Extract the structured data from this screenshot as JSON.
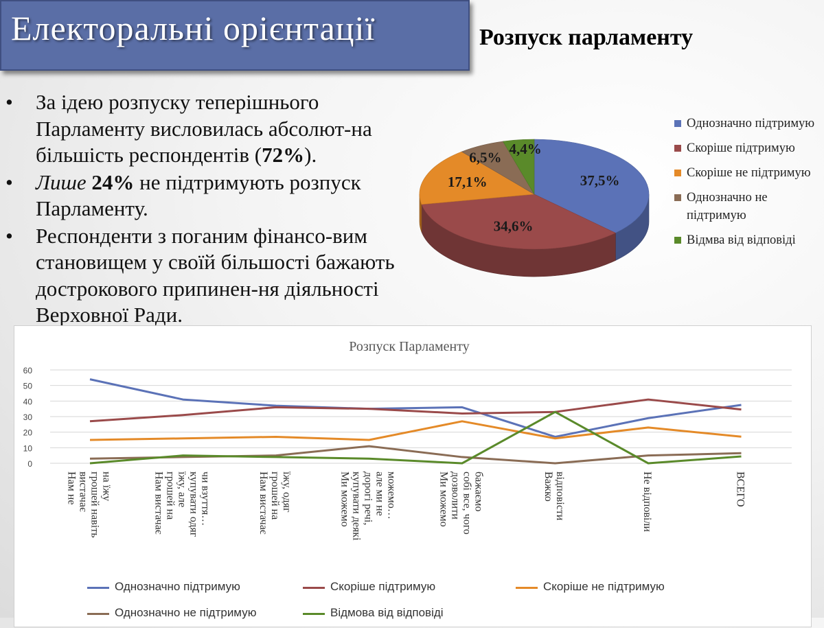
{
  "header": {
    "title": "Електоральні орієнтації",
    "subtitle": "Розпуск парламенту"
  },
  "bullets": [
    {
      "dot": "•",
      "parts": [
        {
          "t": "За ідею розпуску теперішнього Парламенту висловилась абсолют-на більшість респондентів ("
        },
        {
          "t": "72%",
          "b": true
        },
        {
          "t": ")."
        }
      ]
    },
    {
      "dot": "•",
      "parts": [
        {
          "t": "Лише ",
          "i": true
        },
        {
          "t": "24%",
          "b": true
        },
        {
          "t": " не підтримують розпуск Парламенту."
        }
      ]
    },
    {
      "dot": "•",
      "parts": [
        {
          "t": "Респонденти з поганим фінансо-вим становищем у своїй більшості бажають дострокового припинен-ня діяльності Верховної Ради."
        }
      ]
    }
  ],
  "colors": {
    "blue": "#5b72b7",
    "red": "#9a4a4a",
    "orange": "#e48a28",
    "brown": "#8a6c55",
    "green": "#5a8a2a"
  },
  "chart_data": [
    {
      "type": "pie",
      "title": "",
      "labels": [
        "Однозначно підтримую",
        "Скоріше підтримую",
        "Скоріше не підтримую",
        "Однозначно не підтримую",
        "Відмва від відповіді"
      ],
      "values": [
        37.5,
        34.6,
        17.1,
        6.5,
        4.4
      ],
      "value_labels": [
        "37,5%",
        "34,6%",
        "17,1%",
        "6,5%",
        "4,4%"
      ],
      "legend_position": "right",
      "style": "3d"
    },
    {
      "type": "line",
      "title": "Розпуск Парламенту",
      "categories": [
        "Нам не вистачає грошей навіть на їжу",
        "Нам вистачає грошей на їжу, але купувати одяг чи взуття…",
        "Нам вистачає грошей на їжу, одяг",
        "Ми можемо купувати деякі дорогі речі, але ми не можемо…",
        "Ми можемо дозволити собі все, чого бажаємо",
        "Важко відповісти",
        "Не відповіли",
        "ВСЕГО"
      ],
      "category_label_lines": [
        [
          "Нам не",
          "вистачає",
          "грошей навіть",
          "на їжу"
        ],
        [
          "Нам вистачає",
          "грошей на",
          "їжу, але",
          "купувати одяг",
          "чи взуття…"
        ],
        [
          "Нам вистачає",
          "грошей на",
          "їжу, одяг"
        ],
        [
          "Ми можемо",
          "купувати деякі",
          "дорогі речі,",
          "але ми не",
          "можемо…"
        ],
        [
          "Ми можемо",
          "дозволити",
          "собі все, чого",
          "бажаємо"
        ],
        [
          "Важко",
          "відповісти"
        ],
        [
          "Не відповіли"
        ],
        [
          "ВСЕГО"
        ]
      ],
      "series": [
        {
          "name": "Однозначно підтримую",
          "color": "#5b72b7",
          "values": [
            54,
            41,
            37,
            35,
            36,
            17,
            29,
            37.5
          ]
        },
        {
          "name": "Скоріше підтримую",
          "color": "#9a4a4a",
          "values": [
            27,
            31,
            36,
            35,
            32,
            33,
            41,
            34.6
          ]
        },
        {
          "name": "Скоріше не підтримую",
          "color": "#e48a28",
          "values": [
            15,
            16,
            17,
            15,
            27,
            16,
            23,
            17.1
          ]
        },
        {
          "name": "Однозначно не підтримую",
          "color": "#8a6c55",
          "values": [
            3,
            4,
            5,
            11,
            4,
            0,
            5,
            6.5
          ]
        },
        {
          "name": "Відмова від відповіді",
          "color": "#5a8a2a",
          "values": [
            0,
            5,
            4,
            3,
            0,
            33,
            0,
            4.4
          ]
        }
      ],
      "ylim": [
        0,
        60
      ],
      "yticks": [
        "0",
        "10",
        "20",
        "30",
        "40",
        "50",
        "60"
      ],
      "grid": true,
      "legend_position": "bottom"
    }
  ]
}
